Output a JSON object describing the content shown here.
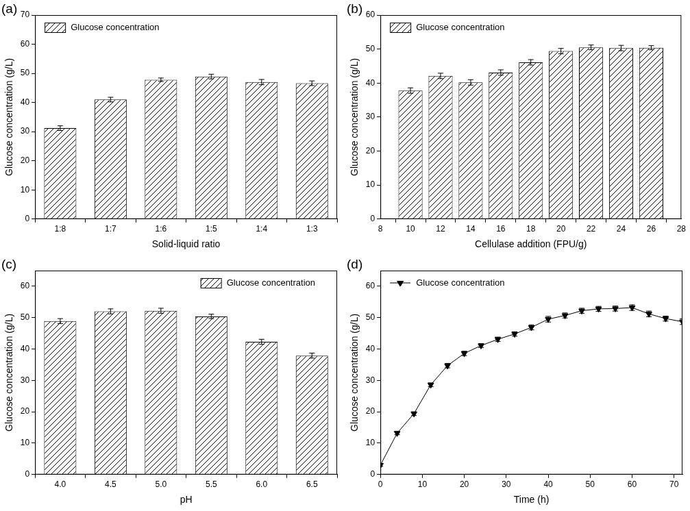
{
  "chart_data": [
    {
      "type": "bar",
      "title": "(a)",
      "x_label": "Solid-liquid ratio",
      "y_label": "Glucose concentration (g/L)",
      "categories": [
        "1:8",
        "1:7",
        "1:6",
        "1:5",
        "1:4",
        "1:3"
      ],
      "series": [
        {
          "name": "Glucose concentration",
          "color": "#000000",
          "values": [
            31.2,
            41.0,
            47.8,
            48.9,
            47.0,
            46.6
          ],
          "errors": [
            0.8,
            0.8,
            0.6,
            0.8,
            0.9,
            0.8
          ]
        }
      ],
      "ylim": [
        0,
        70
      ],
      "yticks": [
        0,
        10,
        20,
        30,
        40,
        50,
        60,
        70
      ],
      "grid": false,
      "legend": "upper left"
    },
    {
      "type": "bar",
      "title": "(b)",
      "x_label": "Cellulase addition (FPU/g)",
      "y_label": "Glucose concentration (g/L)",
      "x": [
        10,
        12,
        14,
        16,
        18,
        20,
        22,
        24,
        26
      ],
      "series": [
        {
          "name": "Glucose concentration",
          "color": "#000000",
          "values": [
            37.8,
            42.1,
            40.2,
            43.1,
            46.1,
            49.4,
            50.5,
            50.3,
            50.4
          ],
          "errors": [
            0.8,
            0.8,
            0.8,
            0.8,
            0.8,
            0.8,
            0.7,
            0.8,
            0.6
          ]
        }
      ],
      "xlim": [
        8,
        28
      ],
      "xticks": [
        8,
        10,
        12,
        14,
        16,
        18,
        20,
        22,
        24,
        26,
        28
      ],
      "ylim": [
        0,
        60
      ],
      "yticks": [
        0,
        10,
        20,
        30,
        40,
        50,
        60
      ],
      "grid": false,
      "legend": "upper left"
    },
    {
      "type": "bar",
      "title": "(c)",
      "x_label": "pH",
      "y_label": "Glucose concentration (g/L)",
      "categories": [
        "4.0",
        "4.5",
        "5.0",
        "5.5",
        "6.0",
        "6.5"
      ],
      "series": [
        {
          "name": "Glucose concentration",
          "color": "#000000",
          "values": [
            48.9,
            52.0,
            52.2,
            50.4,
            42.3,
            37.9
          ],
          "errors": [
            0.8,
            0.8,
            0.8,
            0.7,
            0.8,
            0.8
          ]
        }
      ],
      "ylim": [
        0,
        65
      ],
      "yticks": [
        0,
        10,
        20,
        30,
        40,
        50,
        60
      ],
      "grid": false,
      "legend": "upper right"
    },
    {
      "type": "line",
      "title": "(d)",
      "x_label": "Time (h)",
      "y_label": "Glucose concentration (g/L)",
      "x": [
        0,
        4,
        8,
        12,
        16,
        20,
        24,
        28,
        32,
        36,
        40,
        44,
        48,
        52,
        56,
        60,
        64,
        68,
        72
      ],
      "series": [
        {
          "name": "Glucose concentration",
          "color": "#000000",
          "marker": "triangle-down",
          "line_style": "solid",
          "values": [
            3.0,
            13.2,
            19.4,
            28.6,
            34.7,
            38.6,
            41.1,
            43.1,
            44.8,
            46.9,
            49.5,
            50.7,
            52.2,
            52.8,
            52.9,
            53.2,
            51.2,
            49.7,
            48.7
          ],
          "errors": [
            0.4,
            0.5,
            0.6,
            0.6,
            0.7,
            0.7,
            0.6,
            0.7,
            0.7,
            0.8,
            0.9,
            0.8,
            0.8,
            0.8,
            0.8,
            0.9,
            0.9,
            0.8,
            0.9
          ]
        }
      ],
      "xlim": [
        0,
        72
      ],
      "xticks": [
        0,
        10,
        20,
        30,
        40,
        50,
        60,
        70
      ],
      "ylim": [
        0,
        65
      ],
      "yticks": [
        0,
        10,
        20,
        30,
        40,
        50,
        60
      ],
      "grid": false,
      "legend": "upper left"
    }
  ]
}
